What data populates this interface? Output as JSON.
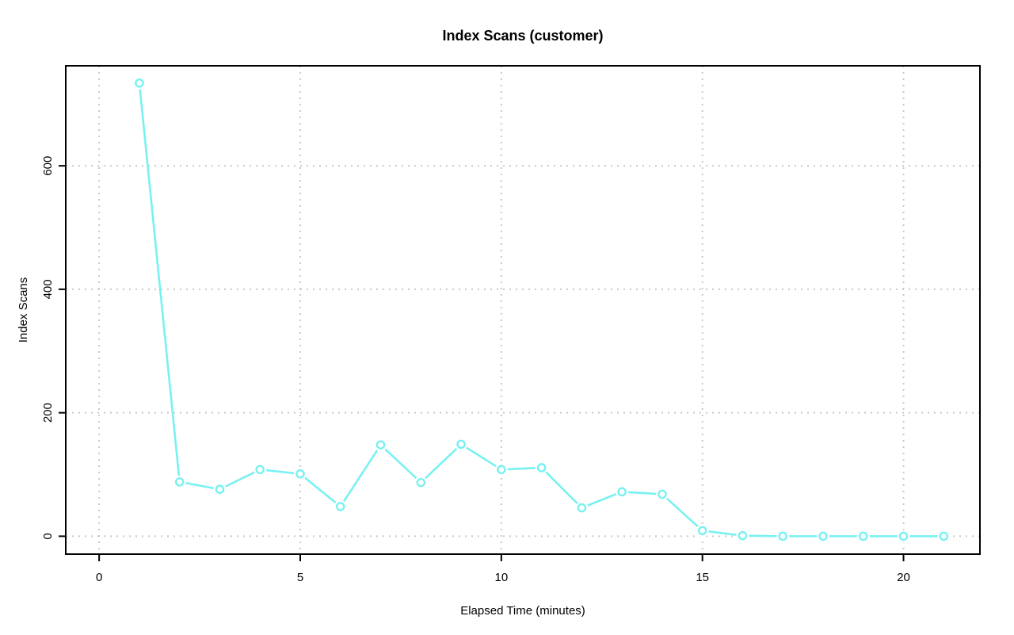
{
  "page": {
    "background_color": "#ffffff"
  },
  "chart_data": {
    "type": "line",
    "title": "Index Scans (customer)",
    "xlabel": "Elapsed Time (minutes)",
    "ylabel": "Index Scans",
    "x": [
      1,
      2,
      3,
      4,
      5,
      6,
      7,
      8,
      9,
      10,
      11,
      12,
      13,
      14,
      15,
      16,
      17,
      18,
      19,
      20,
      21
    ],
    "y": [
      734,
      88,
      76,
      108,
      101,
      48,
      148,
      87,
      149,
      108,
      111,
      46,
      72,
      68,
      9,
      1,
      0,
      0,
      0,
      0,
      0
    ],
    "xticks": [
      0,
      5,
      10,
      15,
      20
    ],
    "yticks": [
      0,
      200,
      400,
      600
    ],
    "xlim": [
      -0.83,
      21.9
    ],
    "ylim": [
      -29,
      762
    ],
    "grid": true,
    "grid_style": "dotted",
    "legend": "none",
    "marker": "open-circle",
    "line_color": "#79f1f1",
    "grid_color": "#c9c9c9",
    "axis_color": "#000000",
    "y_tick_label_rotation_deg": 90
  }
}
